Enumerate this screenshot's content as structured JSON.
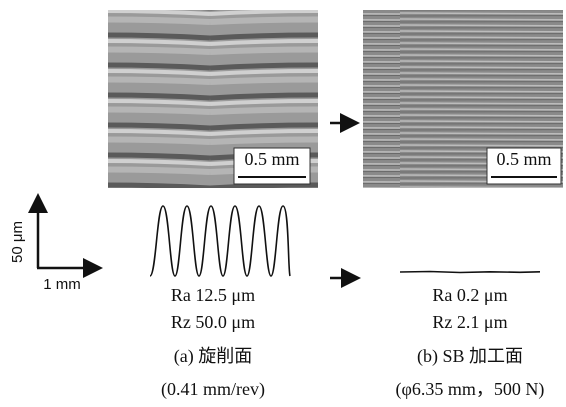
{
  "scale_axes": {
    "vertical": "50 μm",
    "horizontal": "1 mm"
  },
  "panels": [
    {
      "scale_bar": "0.5 mm",
      "ra": "Ra 12.5 μm",
      "rz": "Rz 50.0 μm",
      "caption": "(a) 旋削面",
      "condition": "(0.41 mm/rev)"
    },
    {
      "scale_bar": "0.5 mm",
      "ra": "Ra 0.2 μm",
      "rz": "Rz 2.1 μm",
      "caption": "(b) SB 加工面",
      "condition": "(φ6.35 mm，500 N)"
    }
  ]
}
